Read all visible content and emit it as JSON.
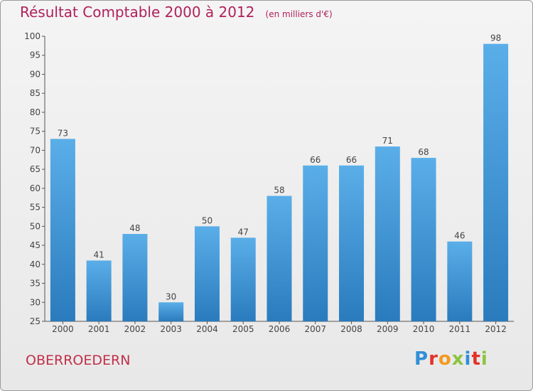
{
  "title": "Résultat Comptable 2000 à 2012",
  "subtitle": "(en milliers d'€)",
  "town": "OBERROEDERN",
  "logo": {
    "letters": [
      "P",
      "r",
      "o",
      "x",
      "i",
      "t",
      "i"
    ],
    "colors": [
      "#2f8fd8",
      "#e2332a",
      "#f39a1e",
      "#8bc53f",
      "#2f8fd8",
      "#e2332a",
      "#8bc53f"
    ]
  },
  "colors": {
    "title": "#b0205a",
    "bar_top": "#5aaee8",
    "bar_bottom": "#2a7bbd",
    "town": "#c0304a"
  },
  "chart_data": {
    "type": "bar",
    "categories": [
      "2000",
      "2001",
      "2002",
      "2003",
      "2004",
      "2005",
      "2006",
      "2007",
      "2008",
      "2009",
      "2010",
      "2011",
      "2012"
    ],
    "values": [
      73,
      41,
      48,
      30,
      50,
      47,
      58,
      66,
      66,
      71,
      68,
      46,
      98
    ],
    "ylim": [
      25,
      100
    ],
    "yticks": [
      25,
      30,
      35,
      40,
      45,
      50,
      55,
      60,
      65,
      70,
      75,
      80,
      85,
      90,
      95,
      100
    ],
    "grid": false,
    "data_labels": true
  }
}
